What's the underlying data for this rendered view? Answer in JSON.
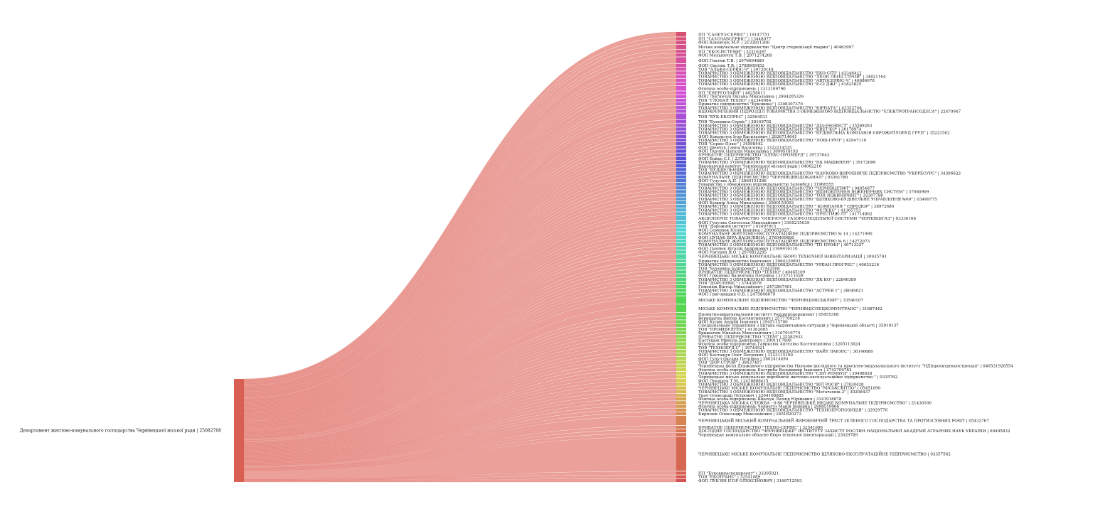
{
  "diagram": {
    "type": "sankey",
    "source": {
      "label": "Департамент житлово-комунального господарства Чернівецької міської ради | 25082708",
      "color": "#d95f52"
    },
    "link_color": "#e88f88",
    "targets": [
      {
        "label": "ПП \"САНЕУЗ-СЕРВІС\" | 19147751",
        "value": 3
      },
      {
        "label": "ПП \"ГАЗСНАБСЕРВІС\" | 13448077",
        "value": 2
      },
      {
        "label": "ФОП Коновчук М.Р. | 2133811300",
        "value": 2
      },
      {
        "label": "Міське комунальне підприємство \"Центр стерилізації тварин\" | 40462997",
        "value": 3
      },
      {
        "label": "ПП \"ЕКОСИСТЕМИ\" | 32216397",
        "value": 2
      },
      {
        "label": "ФОП Мельничук Т.В. | 2971274268",
        "value": 2
      },
      {
        "label": "ФОП Гнатюк Т.В. | 2976694880",
        "value": 4
      },
      {
        "label": "ФОП Свєтнік Т.В. | 2788808452",
        "value": 2
      },
      {
        "label": "ТОВ \"АЛЬФА-СЕРВІС-Ч\" | 39720148",
        "value": 2
      },
      {
        "label": "ТОВАРИСТВО З ОБМЕЖЕНОЮ ВІДПОВІДАЛЬНІСТЮ \"ЕКО-СІТІ\" | 42346412",
        "value": 2
      },
      {
        "label": "ТОВАРИСТВО З ОБМЕЖЕНОЮ ВІДПОВІДАЛЬНІСТЮ \"ЛЕОН ЛЕНД СТРОЙ\" | 34821164",
        "value": 2
      },
      {
        "label": "ТОВАРИСТВО З ОБМЕЖЕНОЮ ВІДПОВІДАЛЬНІСТЮ \"АВТОСЕРВІС-Ч\" | 40686078",
        "value": 2
      },
      {
        "label": "ТОВАРИСТВО З ОБМЕЖЕНОЮ ВІДПОВІДАЛЬНІСТЮ \"Р-СІ ДЖІ\" | 41823825",
        "value": 2
      },
      {
        "label": "Фізична особа-підприємець | 3313109790",
        "value": 3
      },
      {
        "label": "ПП \"ЕНЕРГОЛАЙН\" | 40258011",
        "value": 2
      },
      {
        "label": "ФОП Лук'янчук Оксана Миколаївна | 2994205329",
        "value": 2
      },
      {
        "label": "ТОВ \"ГЛОБАЛ ТЕХНО\" | 42340984",
        "value": 2
      },
      {
        "label": "Приватне підприємство \"Буковина\" | 3308307370",
        "value": 2
      },
      {
        "label": "ТОВАРИСТВО З ОБМЕЖЕНОЮ ВІДПОВІДАЛЬНІСТЮ \"ЮРНАТА\" | 42352748",
        "value": 2
      },
      {
        "label": "ВІДОКРЕМЛЕНИЙ ПІДРОЗДІЛ ТОВАРИСТВА З ОБМЕЖЕНОЮ ВІДПОВІДАЛЬНІСТЮ \"ЕЛЕКТРОТРАНСОДЕСА\" | 22470947",
        "value": 2
      },
      {
        "label": "ТОВ \"БУК-ЕКСПРЕС\" | 32564531",
        "value": 4
      },
      {
        "label": "ТОВ \"Буковина-Сервіс\" | 38169702",
        "value": 2
      },
      {
        "label": "ТОВАРИСТВО З ОБМЕЖЕНОЮ ВІДПОВІДАЛЬНІСТЮ \"ДІА-ЕКОВЕСТ\" | 35589263",
        "value": 2
      },
      {
        "label": "ТОВАРИСТВО З ОБМЕЖЕНОЮ ВІДПОВІДАЛЬНІСТЮ \"КВЕТ-КО\" | 36178974",
        "value": 2
      },
      {
        "label": "ТОВАРИСТВО З ОБМЕЖЕНОЮ ВІДПОВІДАЛЬНІСТЮ \"БУДІВЕЛЬНА КОМПАНІЯ ЄВРОЖИТЛОБУД ГРУП\" | 35221562",
        "value": 2
      },
      {
        "label": "ФОП Ковальчук Ігор Васильович | 2926714641",
        "value": 2
      },
      {
        "label": "ТОВАРИСТВО З ОБМЕЖЕНОЮ ВІДПОВІДАЛЬНІСТЮ \"ЛОБІ-ГРУП\" | 42947110",
        "value": 2
      },
      {
        "label": "ТОВ \"Сервіс-Плюс\" | 34598442",
        "value": 2
      },
      {
        "label": "ФОП Шевчук Ганна Василівна | 3322214525",
        "value": 2
      },
      {
        "label": "ФОП Ткачук Наталія Миколаївна | 3090518193",
        "value": 2
      },
      {
        "label": "ПРИВАТНЕ ПІДПРИЄМСТВО \"АЛЕКС-ПРОМБУД\" | 39737643",
        "value": 2
      },
      {
        "label": "ФОП Бойко С.І. | 2375968679",
        "value": 2
      },
      {
        "label": "ТОВАРИСТВО З ОБМЕЖЕНОЮ ВІДПОВІДАЛЬНІСТЮ \"ПК МАШИНЕРІ\" | 39172006",
        "value": 2
      },
      {
        "label": "Виконавчий комітет Чернівецької міської ради | 04062216",
        "value": 2
      },
      {
        "label": "ТОВ \"БУДІВЕЛЬНИК\" | 21442531",
        "value": 2
      },
      {
        "label": "ТОВАРИСТВО З ОБМЕЖЕНОЮ ВІДПОВІДАЛЬНІСТЮ \"НАУКОВО-ВИРОБНИЧЕ ПІДПРИЄМСТВО \"УКРРЕСУРС\" | 34396623",
        "value": 2
      },
      {
        "label": "КОМУНАЛЬНЕ ПІДПРИЄМСТВО \"ЧЕРНІВЦІВОДОКАНАЛ\" | 03361780",
        "value": 2
      },
      {
        "label": "ФОП Гуцуляк А.П. | 2864151286",
        "value": 2
      },
      {
        "label": "Товариство з обмеженою відповідальністю Зеленбуд | 31966555",
        "value": 2
      },
      {
        "label": "ТОВАРИСТВО З ОБМЕЖЕНОЮ ВІДПОВІДАЛЬНІСТЮ \"ЧЕРНІВЦІЛІФТ\" | 04854877",
        "value": 2
      },
      {
        "label": "ТОВАРИСТВО З ОБМЕЖЕНОЮ ВІДПОВІДАЛЬНІСТЮ \"ВІДНОВЛЕННЯ ІНЖЕНЕРНИХ СИСТЕМ\" | 37080909",
        "value": 2
      },
      {
        "label": "ТОВАРИСТВО З ОБМЕЖЕНОЮ ВІДПОВІДАЛЬНІСТЮ \"ТОН ІНЖИНІРИНГ\" | 32307788",
        "value": 2
      },
      {
        "label": "ТОВАРИСТВО З ОБМЕЖЕНОЮ ВІДПОВІДАЛЬНІСТЮ \"ШЛЯХОВО-БУДІВЕЛЬНЕ УПРАВЛІННЯ №60\" | 03449775",
        "value": 2
      },
      {
        "label": "ФОП Кушнір Аліна Миколаївна | 2960153003",
        "value": 2
      },
      {
        "label": "ТОВАРИСТВО З ОБМЕЖЕНОЮ ВІДПОВІДАЛЬНІСТЮ \" КОМПАНІЯ \" ЄВРОДОР\" | 38972680",
        "value": 2
      },
      {
        "label": "ТОВАРИСТВО З ОБМЕЖЕНОЮ ВІДПОВІДАЛЬНІСТЮ \"ФЕЛЕКС\" | 41365753",
        "value": 2
      },
      {
        "label": "ТОВАРИСТВО З ОБМЕЖЕНОЮ ВІДПОВІДАЛЬНІСТЮ \"ПРЕСТИЖ-ЛТ\" | 41714802",
        "value": 2
      },
      {
        "label": "АКЦІОНЕРНЕ ТОВАРИСТВО \"ОПЕРАТОР ГАЗОРОЗПОДІЛЬНОЇ СИСТЕМИ \"ЧЕРНІВЦІГАЗ\" | 03336166",
        "value": 3
      },
      {
        "label": "ФОП Гуцуляк Святослав Миколайович | 3165215039",
        "value": 2
      },
      {
        "label": "ТОВ \"Дорожній інститут\" | 42497915",
        "value": 2
      },
      {
        "label": "ФОП Семенюк Юлія Іванівна | 2990652927",
        "value": 2
      },
      {
        "label": "КОМУНАЛЬНЕ ЖИТЛОВО-ЕКСПЛУАТАЦІЙНЕ ПІДПРИЄМСТВО № 14 | 14271990",
        "value": 2
      },
      {
        "label": "ФОП ЦУЦАК ВІРА ВАСИЛІВНА | 2769409890",
        "value": 2
      },
      {
        "label": "КОМУНАЛЬНЕ ЖИТЛОВО-ЕКСПЛУАТАЦІЙНЕ ПІДПРИЄМСТВО № 6 | 14272073",
        "value": 2
      },
      {
        "label": "ТОВАРИСТВО З ОБМЕЖЕНОЮ ВІДПОВІДАЛЬНІСТЮ \"ТП ПРОФІ\" | 40713327",
        "value": 2
      },
      {
        "label": "ФОП Павлюк Віталій Андрійович | 3169916110",
        "value": 2
      },
      {
        "label": "ФОП Унгурян Я.О. | 2970812295",
        "value": 2
      },
      {
        "label": "ЧЕРНІВЕЦЬКЕ МІСЬКЕ КОМУНАЛЬНЕ БЮРО ТЕХНІЧНОЇ ІНВЕНТАРИЗАЦІЇ | 30935793",
        "value": 3
      },
      {
        "label": "Приватне підприємство Іванченко | 3064329093",
        "value": 2
      },
      {
        "label": "ТОВАРИСТВО З ОБМЕЖЕНОЮ ВІДПОВІДАЛЬНІСТЮ \"УРБАН ПРОГРЕС\" | 40653216",
        "value": 2
      },
      {
        "label": "ТОВ \"Буковина Будпроект\" | 37443506",
        "value": 2
      },
      {
        "label": "ПРИВАТНЕ ПІДПРИЄМСТВО \"ТЕХНО\" | 40465109",
        "value": 2
      },
      {
        "label": "ФОП Гриценко Валентина Петрівна | 2137111028",
        "value": 2
      },
      {
        "label": "ТОВАРИСТВО З ОБМЕЖЕНОЮ ВІДПОВІДАЛЬНІСТЮ \"ДК КО\" | 22840389",
        "value": 2
      },
      {
        "label": "ТОВ \"ДОРСЕРВІС\" | 37443878",
        "value": 2
      },
      {
        "label": "Гоменюк Віктор Миколайович | 2473567401",
        "value": 2
      },
      {
        "label": "ТОВАРИСТВО З ОБМЕЖЕНОЮ ВІДПОВІДАЛЬНІСТЮ \"АСТРЕЯ 1\" | 38049021",
        "value": 2
      },
      {
        "label": "ФОП Григоришин О.Б. | 2475808679",
        "value": 2
      },
      {
        "label": "МІСЬКЕ КОМУНАЛЬНЕ ПІДПРИЄМСТВО \"ЧЕРНІВЦІМІСЬКЛІФТ\" | 33540107",
        "value": 5
      },
      {
        "label": "МІСЬКЕ КОМУНАЛЬНЕ ПІДПРИЄМСТВО \"ЧЕРНІВЦІСПЕЦКОМУНТРАНС\" | 31887442",
        "value": 5
      },
      {
        "label": "Проектно-вишукувальний інститут Укрдіпродорпроект | 05455308",
        "value": 2
      },
      {
        "label": "Верищагна Віктор Костянтинович | 2577709216",
        "value": 2
      },
      {
        "label": "ФОП Кулик Андрій Іванович | 2945115700",
        "value": 2
      },
      {
        "label": "Спеціалізоване управління з питань надзвичайних ситуацій у Чернівецькій області | 35919137",
        "value": 2
      },
      {
        "label": "ТОВ \"ПРОФІБУДТЕХ\" | 41362085",
        "value": 2
      },
      {
        "label": "Брижатюк Михайло Миколайович | 3107910774",
        "value": 2
      },
      {
        "label": "ПРИВАТНЕ ПІДПРИЄМСТВО \"СТЕМ\" | 35582933",
        "value": 2
      },
      {
        "label": "Пастушок Микола Дмитрович | 3001117699",
        "value": 2
      },
      {
        "label": "Фізична особа-підприємець Гаврилюк Ангеліна Костянтинівна | 3205113624",
        "value": 2
      },
      {
        "label": "ТОВ \"ТЕХНОБУД-С\" | 39744521",
        "value": 2
      },
      {
        "label": "ТОВАРИСТВО З ОБМЕЖЕНОЮ ВІДПОВІДАЛЬНІСТЮ \"ВАЙТ ЛАЮНС\" | 36146680",
        "value": 2
      },
      {
        "label": "ФОП Костащук Олег Петрович | 3123115100",
        "value": 2
      },
      {
        "label": "ФОП Гуцул Оксана Петрівна | 2802414494",
        "value": 2
      },
      {
        "label": "ТОВ \"ДОР-СТРОЙ\" | 38437407",
        "value": 2
      },
      {
        "label": "Чернівецька філія Державного підприємства Науково-дослідного та проектно-вишукувального інституту \"НДІпроектреконструкція\" | 046531926554",
        "value": 2
      },
      {
        "label": "Фізична особа-підприємець Костриба Володимир Іванович | 2742709782",
        "value": 2
      },
      {
        "label": "ТОВАРИСТВО З ОБМЕЖЕНОЮ ВІДПОВІДАЛЬНІСТЮ \"СПП РЕМБУД\" | 39498628",
        "value": 2
      },
      {
        "label": "Чернівецьке міське комунальне виробниче житлово-експлуатаційне підприємство \" | 0335762",
        "value": 2
      },
      {
        "label": "ФОП Лукашук Т.М. | 2418868415",
        "value": 2
      },
      {
        "label": "ТОВАРИСТВО З ОБМЕЖЕНОЮ ВІДПОВІДАЛЬНІСТЮ \"ВІЛ РОСИ\" | 37830428",
        "value": 2
      },
      {
        "label": "ЧЕРНІВЕЦЬКЕ МІСЬКЕ КОМУНАЛЬНЕ ПІДПРИЄМСТВО \"МІСЬКСВІТЛО\" | 05451090",
        "value": 2
      },
      {
        "label": "ТОВАРИСТВО З ОБМЕЖЕНОЮ ВІДПОВІДАЛЬНІСТЮ \"Мегатехнік-2\" | 30208437",
        "value": 2
      },
      {
        "label": "Трач Олександр Петрович | 2264108885",
        "value": 2
      },
      {
        "label": "Фізична особа-підприємець Швачук Леонід Юрійович | 3141918878",
        "value": 2
      },
      {
        "label": "ЧЕРНІВЕЦЬКА МІСЬКА СЛУЖБА - 0-80 ЧЕРНІВЕЦЬКЕ МІСЬКЕ КОМУНАЛЬНЕ ПІДПРИЄМСТВО\" | 21430160",
        "value": 2
      },
      {
        "label": "Фізична особа-підприємець Чорногуз Марія Іванівна | 2998519066",
        "value": 2
      },
      {
        "label": "ТОВАРИСТВО З ОБМЕЖЕНОЮ ВІДПОВІДАЛЬНІСТЮ \"ТЕХНОПРОПОЗИЦІЯ\" | 32929776",
        "value": 2
      },
      {
        "label": "Кирилюк Олександр Миколайович | 2451820273",
        "value": 2
      },
      {
        "label": "ЧЕРНІВЕЦЬКИЙ МІСЬКИЙ КОМУНАЛЬНИЙ ВИРОБНИЧИЙ ТРЕСТ ЗЕЛЕНОГО ГОСПОДАРСТВА ТА ПРОТИЗСУВНИХ РОБІТ | 05432767",
        "value": 6
      },
      {
        "label": "ПРИВАТНЕ ПІДПРИЄМСТВО \"ТЕХНО-СЕРВІС\" | 32541086",
        "value": 2
      },
      {
        "label": "ДОСЛІДНЕ ГОСПОДАРСТВО \"ЧЕРНІВЕЦЬКЕ\" ІНСТИТУТУ ЗАХИСТУ РОСЛИН НАЦІОНАЛЬНОЇ АКАДЕМІЇ АГРАРНИХ НАУК УКРАЇНИ | 00495832",
        "value": 2
      },
      {
        "label": "Чернівецьке комунальне обласне бюро технічної інвентаризації | 23029789",
        "value": 2
      },
      {
        "label": "ЧЕРНІВЕЦЬКЕ МІСЬКЕ КОМУНАЛЬНЕ ПІДПРИЄМСТВО ШЛЯХОВО-ЕКСПЛУАТАЦІЙНЕ ПІДПРИЄМСТВО | 03357562",
        "value": 22
      },
      {
        "label": "ПП \"Буковинаспецпроект\" | 33395021",
        "value": 2
      },
      {
        "label": "ТОВ \"ЕКОТРАНС\" | 32541089",
        "value": 2
      },
      {
        "label": "ФОП ЛУК'ЯН ІГОР ОЛЕКСІЙОВИЧ | 3169712593",
        "value": 2
      }
    ]
  }
}
